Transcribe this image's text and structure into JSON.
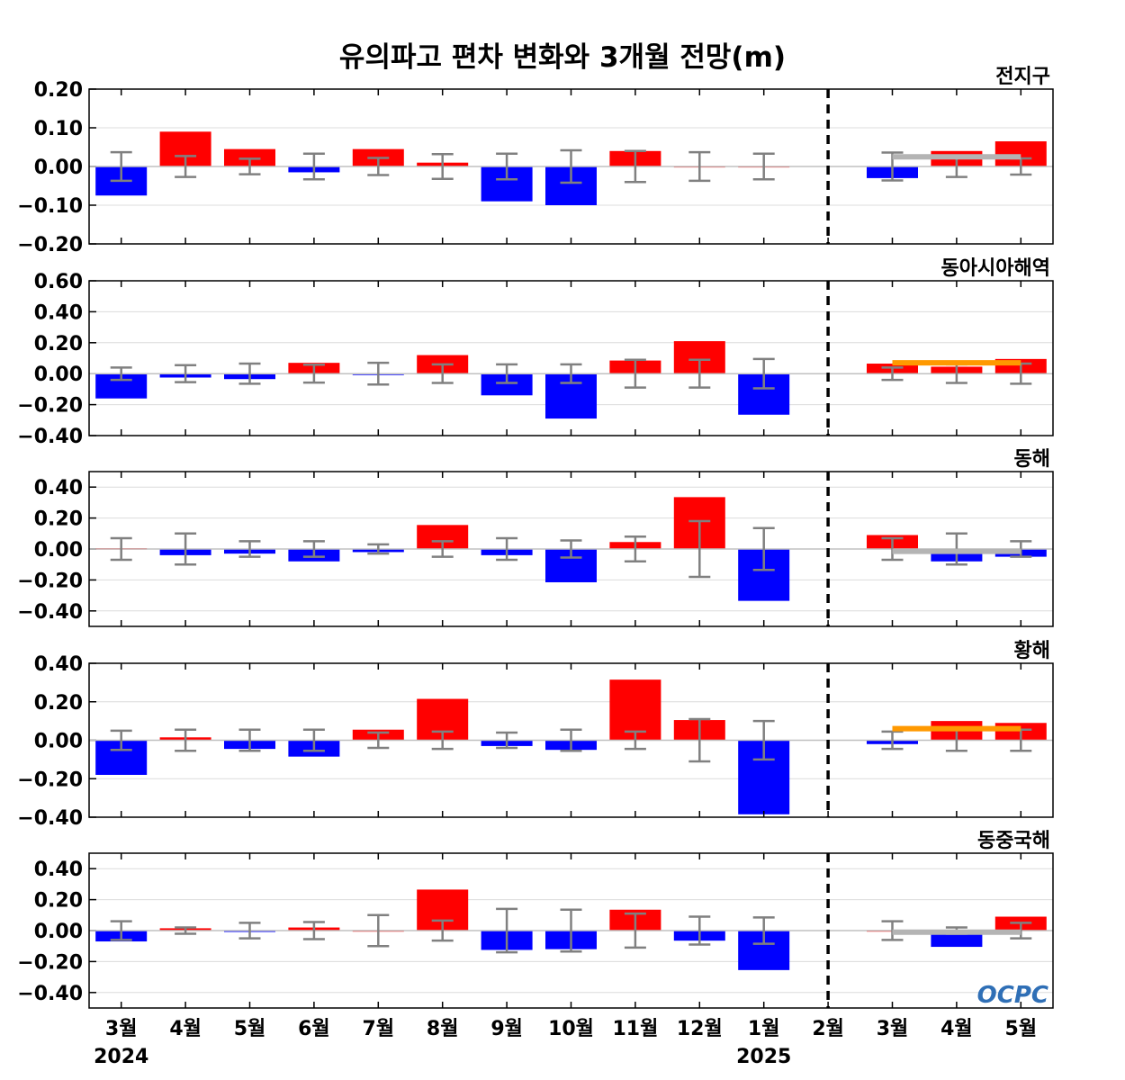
{
  "title": "유의파고 편차 변화와 3개월 전망(m)",
  "logo_text": "OCPC",
  "colors": {
    "positive": "#ff0000",
    "negative": "#0000ff",
    "error_bar": "#808080",
    "forecast_gray": "#b4b4b4",
    "forecast_orange": "#ff9900",
    "divider": "#000000",
    "grid": "#dcdcdc",
    "logo": "#2f6fb6"
  },
  "chart_data": [
    {
      "type": "bar",
      "region": "전지구",
      "ylim": [
        -0.2,
        0.2
      ],
      "yticks": [
        -0.2,
        -0.1,
        0.0,
        0.1,
        0.2
      ],
      "ytick_labels": [
        "−0.20",
        "−0.10",
        "0.00",
        "0.10",
        "0.20"
      ],
      "values": [
        -0.075,
        0.09,
        0.045,
        -0.015,
        0.045,
        0.01,
        -0.09,
        -0.1,
        0.04,
        0.001,
        0.001,
        0.0,
        -0.03,
        0.04,
        0.065
      ],
      "error": [
        0.037,
        0.027,
        0.02,
        0.033,
        0.022,
        0.032,
        0.033,
        0.042,
        0.04,
        0.037,
        0.033,
        0.0,
        0.036,
        0.027,
        0.021
      ],
      "forecast_line": {
        "value": 0.025,
        "color": "gray"
      }
    },
    {
      "type": "bar",
      "region": "동아시아해역",
      "ylim": [
        -0.4,
        0.6
      ],
      "yticks": [
        -0.4,
        -0.2,
        0.0,
        0.2,
        0.4,
        0.6
      ],
      "ytick_labels": [
        "−0.40",
        "−0.20",
        "0.00",
        "0.20",
        "0.40",
        "0.60"
      ],
      "values": [
        -0.16,
        -0.025,
        -0.035,
        0.07,
        -0.005,
        0.12,
        -0.14,
        -0.29,
        0.085,
        0.21,
        -0.265,
        0.0,
        0.065,
        0.045,
        0.095
      ],
      "error": [
        0.04,
        0.055,
        0.065,
        0.058,
        0.07,
        0.06,
        0.06,
        0.06,
        0.09,
        0.09,
        0.095,
        0.0,
        0.04,
        0.06,
        0.065
      ],
      "forecast_line": {
        "value": 0.07,
        "color": "orange"
      }
    },
    {
      "type": "bar",
      "region": "동해",
      "ylim": [
        -0.5,
        0.5
      ],
      "yticks": [
        -0.4,
        -0.2,
        0.0,
        0.2,
        0.4
      ],
      "ytick_labels": [
        "−0.40",
        "−0.20",
        "0.00",
        "0.20",
        "0.40"
      ],
      "values": [
        0.005,
        -0.04,
        -0.03,
        -0.08,
        -0.02,
        0.155,
        -0.04,
        -0.215,
        0.045,
        0.335,
        -0.335,
        0.0,
        0.09,
        -0.08,
        -0.05
      ],
      "error": [
        0.07,
        0.1,
        0.05,
        0.05,
        0.03,
        0.05,
        0.07,
        0.055,
        0.08,
        0.18,
        0.135,
        0.0,
        0.07,
        0.1,
        0.05
      ],
      "forecast_line": {
        "value": -0.015,
        "color": "gray"
      }
    },
    {
      "type": "bar",
      "region": "황해",
      "ylim": [
        -0.4,
        0.4
      ],
      "yticks": [
        -0.4,
        -0.2,
        0.0,
        0.2,
        0.4
      ],
      "ytick_labels": [
        "−0.40",
        "−0.20",
        "0.00",
        "0.20",
        "0.40"
      ],
      "values": [
        -0.18,
        0.015,
        -0.045,
        -0.085,
        0.055,
        0.215,
        -0.03,
        -0.05,
        0.315,
        0.105,
        -0.385,
        0.0,
        -0.02,
        0.1,
        0.09
      ],
      "error": [
        0.05,
        0.055,
        0.055,
        0.055,
        0.04,
        0.045,
        0.04,
        0.055,
        0.045,
        0.11,
        0.1,
        0.0,
        0.045,
        0.055,
        0.055
      ],
      "forecast_line": {
        "value": 0.06,
        "color": "orange"
      }
    },
    {
      "type": "bar",
      "region": "동중국해",
      "ylim": [
        -0.5,
        0.5
      ],
      "yticks": [
        -0.4,
        -0.2,
        0.0,
        0.2,
        0.4
      ],
      "ytick_labels": [
        "−0.40",
        "−0.20",
        "0.00",
        "0.20",
        "0.40"
      ],
      "values": [
        -0.07,
        0.015,
        -0.002,
        0.02,
        0.002,
        0.265,
        -0.125,
        -0.12,
        0.135,
        -0.065,
        -0.255,
        0.0,
        0.002,
        -0.105,
        0.09
      ],
      "error": [
        0.06,
        0.02,
        0.05,
        0.055,
        0.1,
        0.065,
        0.14,
        0.135,
        0.11,
        0.09,
        0.085,
        0.0,
        0.06,
        0.02,
        0.05
      ],
      "forecast_line": {
        "value": -0.01,
        "color": "gray"
      }
    }
  ],
  "x_axis": {
    "categories": [
      "3월",
      "4월",
      "5월",
      "6월",
      "7월",
      "8월",
      "9월",
      "10월",
      "11월",
      "12월",
      "1월",
      "2월",
      "3월",
      "4월",
      "5월"
    ],
    "year_labels": [
      {
        "index": 0,
        "text": "2024"
      },
      {
        "index": 10,
        "text": "2025"
      }
    ],
    "divider_index": 11,
    "forecast_start_index": 12
  }
}
